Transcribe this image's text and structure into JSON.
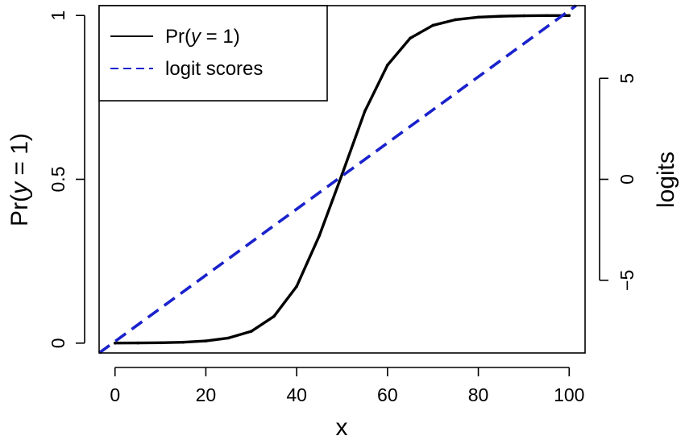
{
  "chart_data": {
    "type": "line",
    "xlabel": "x",
    "ylabel": {
      "prefix": "Pr(",
      "var": "y",
      "suffix": " = 1)"
    },
    "y2label": "logits",
    "xlim": [
      -3.5,
      103.5
    ],
    "ylim": [
      -0.03,
      1.03
    ],
    "y2lim": [
      -8.6,
      8.6
    ],
    "x_ticks": [
      {
        "value": 0,
        "label": "0"
      },
      {
        "value": 20,
        "label": "20"
      },
      {
        "value": 40,
        "label": "40"
      },
      {
        "value": 60,
        "label": "60"
      },
      {
        "value": 80,
        "label": "80"
      },
      {
        "value": 100,
        "label": "100"
      }
    ],
    "y_ticks": [
      {
        "value": 0,
        "label": "0"
      },
      {
        "value": 0.5,
        "label": "0.5"
      },
      {
        "value": 1,
        "label": "1"
      }
    ],
    "y2_ticks": [
      {
        "value": -5,
        "label": "−5"
      },
      {
        "value": 0,
        "label": "0"
      },
      {
        "value": 5,
        "label": "5"
      }
    ],
    "series": [
      {
        "name": {
          "prefix": "Pr(",
          "var": "y",
          "suffix": " = 1)"
        },
        "axis": "left",
        "color": "#000000",
        "dash": "solid",
        "x": [
          0,
          5,
          10,
          15,
          20,
          25,
          30,
          35,
          40,
          45,
          50,
          55,
          60,
          65,
          70,
          75,
          80,
          85,
          90,
          95,
          100
        ],
        "y": [
          0.0002,
          0.0005,
          0.0012,
          0.0028,
          0.0067,
          0.0157,
          0.036,
          0.0817,
          0.1733,
          0.3284,
          0.5154,
          0.7074,
          0.8487,
          0.9308,
          0.9699,
          0.9872,
          0.9947,
          0.9977,
          0.999,
          0.9996,
          0.9998
        ]
      },
      {
        "name": "logit scores",
        "axis": "right",
        "color": "#1a22cc",
        "dash": "dashed",
        "x": [
          -3.5,
          101.5
        ],
        "y": [
          -8.6,
          8.6
        ]
      }
    ],
    "legend": {
      "position": "top-left"
    },
    "grid": false
  }
}
